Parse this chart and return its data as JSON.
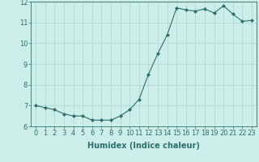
{
  "x": [
    0,
    1,
    2,
    3,
    4,
    5,
    6,
    7,
    8,
    9,
    10,
    11,
    12,
    13,
    14,
    15,
    16,
    17,
    18,
    19,
    20,
    21,
    22,
    23
  ],
  "y": [
    7.0,
    6.9,
    6.8,
    6.6,
    6.5,
    6.5,
    6.3,
    6.3,
    6.3,
    6.5,
    6.8,
    7.3,
    8.5,
    9.5,
    10.4,
    11.7,
    11.6,
    11.55,
    11.65,
    11.45,
    11.8,
    11.4,
    11.05,
    11.1
  ],
  "line_color": "#2d6e6e",
  "marker": "D",
  "marker_size": 2,
  "bg_color": "#cceee8",
  "grid_color": "#aad4cc",
  "xlabel": "Humidex (Indice chaleur)",
  "xlabel_fontsize": 7,
  "tick_fontsize": 6,
  "ylim": [
    6,
    12
  ],
  "xlim": [
    -0.5,
    23.5
  ],
  "yticks": [
    6,
    7,
    8,
    9,
    10,
    11,
    12
  ],
  "xticks": [
    0,
    1,
    2,
    3,
    4,
    5,
    6,
    7,
    8,
    9,
    10,
    11,
    12,
    13,
    14,
    15,
    16,
    17,
    18,
    19,
    20,
    21,
    22,
    23
  ],
  "line_width": 0.8,
  "spine_color": "#2d6e6e",
  "tick_color": "#2d6e6e"
}
